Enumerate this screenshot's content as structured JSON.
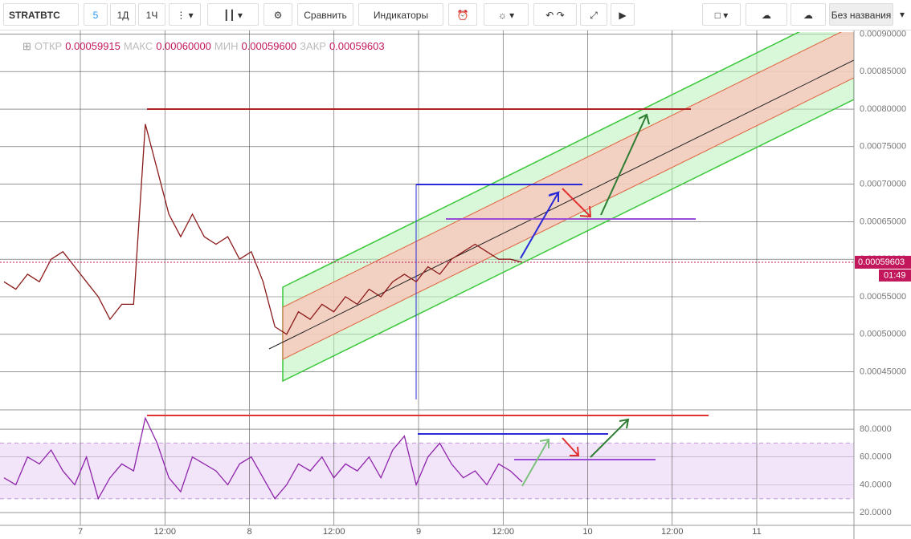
{
  "toolbar": {
    "symbol": "STRATBTC",
    "intervals": [
      "5",
      "1Д",
      "1Ч"
    ],
    "compare": "Сравнить",
    "indicators": "Индикаторы",
    "layout_name": "Без названия"
  },
  "legend": [
    {
      "label": "ОТКР",
      "value": "0.00059915"
    },
    {
      "label": "МАКС",
      "value": "0.00060000"
    },
    {
      "label": "МИН",
      "value": "0.00059600"
    },
    {
      "label": "ЗАКР",
      "value": "0.00059603"
    }
  ],
  "price_tag": {
    "price": "0.00059603",
    "countdown": "01:49"
  },
  "time_axis": [
    "7",
    "12:00",
    "8",
    "12:00",
    "9",
    "12:00",
    "10",
    "12:00",
    "11"
  ],
  "chart_data": [
    {
      "type": "line",
      "color": "#8b1a1a",
      "categories": [
        null,
        null,
        null,
        null,
        null,
        null,
        null,
        null,
        null,
        null,
        null,
        null,
        null,
        null,
        null,
        null,
        null,
        null,
        null,
        null,
        null,
        null,
        null,
        null,
        null,
        null,
        null,
        null,
        null,
        null,
        null,
        null,
        null,
        null,
        null,
        null,
        null,
        null,
        null,
        null,
        null,
        null,
        null,
        null,
        null
      ],
      "values": [
        0.00057,
        0.00056,
        0.00058,
        0.00057,
        0.0006,
        0.00061,
        0.00059,
        0.00057,
        0.00055,
        0.00052,
        0.00054,
        0.00054,
        0.00078,
        0.00072,
        0.00066,
        0.00063,
        0.00066,
        0.00063,
        0.00062,
        0.00063,
        0.0006,
        0.00061,
        0.00057,
        0.00051,
        0.0005,
        0.00053,
        0.00052,
        0.00054,
        0.00053,
        0.00055,
        0.00054,
        0.00056,
        0.00055,
        0.00057,
        0.00058,
        0.00057,
        0.00059,
        0.00058,
        0.0006,
        0.00061,
        0.00062,
        0.00061,
        0.0006,
        0.0006,
        0.000596
      ],
      "ylim": [
        0.0004004,
        0.0009026
      ],
      "yticks": [
        {
          "value": 0.0009,
          "label": "0.00090000"
        },
        {
          "value": 0.00085,
          "label": "0.00085000"
        },
        {
          "value": 0.0008,
          "label": "0.00080000"
        },
        {
          "value": 0.00075,
          "label": "0.00075000"
        },
        {
          "value": 0.0007,
          "label": "0.00070000"
        },
        {
          "value": 0.00065,
          "label": "0.00065000"
        },
        {
          "value": 0.0006,
          "label": "0.00060000"
        },
        {
          "value": 0.00055,
          "label": "0.00055000"
        },
        {
          "value": 0.0005,
          "label": "0.00050000"
        },
        {
          "value": 0.00045,
          "label": "0.00045000"
        }
      ],
      "grid": true
    },
    {
      "type": "line",
      "color": "#8e24aa",
      "categories": [
        null,
        null,
        null,
        null,
        null,
        null,
        null,
        null,
        null,
        null,
        null,
        null,
        null,
        null,
        null,
        null,
        null,
        null,
        null,
        null,
        null,
        null,
        null,
        null,
        null,
        null,
        null,
        null,
        null,
        null,
        null,
        null,
        null,
        null,
        null,
        null,
        null,
        null,
        null,
        null,
        null,
        null,
        null,
        null,
        null
      ],
      "values": [
        45,
        40,
        60,
        55,
        65,
        50,
        40,
        60,
        30,
        45,
        55,
        50,
        88,
        70,
        45,
        35,
        60,
        55,
        50,
        40,
        55,
        60,
        45,
        30,
        40,
        55,
        50,
        60,
        45,
        55,
        50,
        60,
        45,
        65,
        75,
        40,
        60,
        70,
        55,
        45,
        50,
        40,
        55,
        50,
        42
      ],
      "ylim": [
        10.8,
        93.3
      ],
      "yticks": [
        {
          "value": 80,
          "label": "80.0000"
        },
        {
          "value": 60,
          "label": "60.0000"
        },
        {
          "value": 40,
          "label": "40.0000"
        },
        {
          "value": 20,
          "label": "20.0000"
        }
      ],
      "band": [
        30,
        70
      ],
      "grid": true
    }
  ]
}
